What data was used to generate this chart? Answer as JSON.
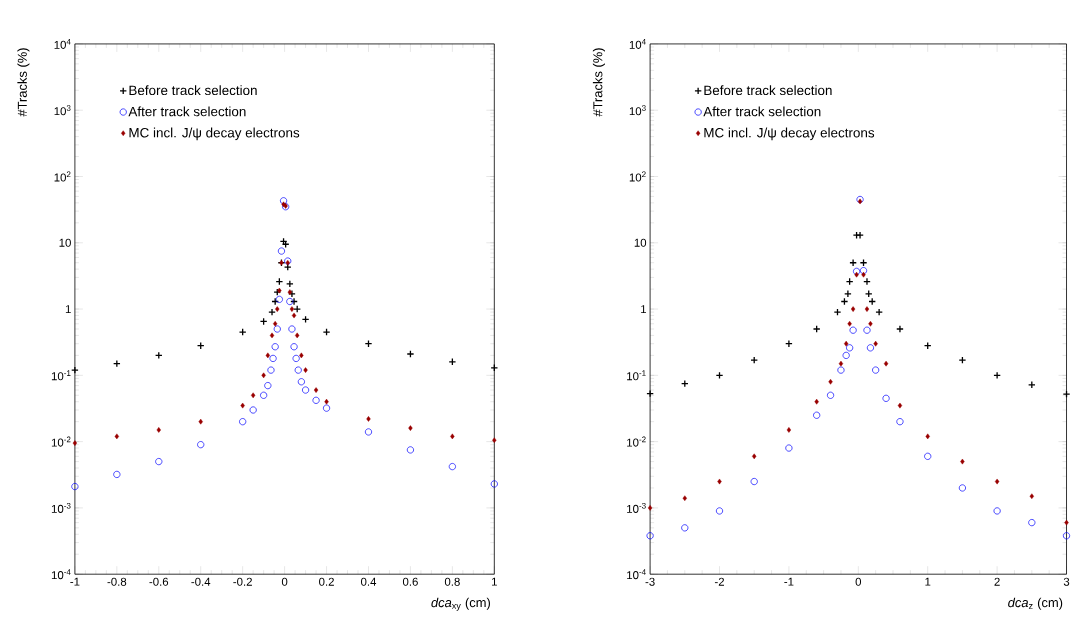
{
  "chart_data": [
    {
      "type": "scatter",
      "xlabel": "*dca*$_{xy}$ (cm)",
      "ylabel": "#Tracks (%)",
      "log": "y",
      "legend": "top left",
      "xlim": [
        -1,
        1
      ],
      "ylim": [
        0.0001,
        10000
      ],
      "xticks": [
        -1,
        -0.8,
        -0.6,
        -0.4,
        -0.2,
        0,
        0.2,
        0.4,
        0.6,
        0.8,
        1
      ],
      "yticks": [
        {
          "value": 0.0001,
          "label": "10$^{-4}$"
        },
        {
          "value": 0.001,
          "label": "10$^{-3}$"
        },
        {
          "value": 0.01,
          "label": "10$^{-2}$"
        },
        {
          "value": 0.1,
          "label": "10$^{-1}$"
        },
        {
          "value": 1,
          "label": "1"
        },
        {
          "value": 10,
          "label": "10"
        },
        {
          "value": 100,
          "label": "10$^{2}$"
        },
        {
          "value": 1000,
          "label": "10$^{3}$"
        },
        {
          "value": 10000,
          "label": "10$^{4}$"
        }
      ],
      "series": [
        {
          "name": "Before track selection",
          "color": "#000000",
          "marker": "cross",
          "x": [
            -1,
            -0.8,
            -0.6,
            -0.4,
            -0.2,
            -0.1,
            -0.06,
            -0.045,
            -0.035,
            -0.025,
            -0.015,
            -0.005,
            0.005,
            0.015,
            0.025,
            0.035,
            0.045,
            0.06,
            0.1,
            0.2,
            0.4,
            0.6,
            0.8,
            1
          ],
          "values": [
            0.12,
            0.15,
            0.2,
            0.28,
            0.45,
            0.65,
            0.9,
            1.3,
            1.8,
            2.6,
            5,
            10.5,
            9.5,
            4.3,
            2.4,
            1.7,
            1.3,
            1.0,
            0.7,
            0.45,
            0.3,
            0.21,
            0.16,
            0.13
          ]
        },
        {
          "name": "After track selection",
          "color": "#0000ff",
          "marker": "circle",
          "x": [
            -1,
            -0.8,
            -0.6,
            -0.4,
            -0.2,
            -0.15,
            -0.1,
            -0.08,
            -0.065,
            -0.055,
            -0.045,
            -0.035,
            -0.025,
            -0.015,
            -0.005,
            0.005,
            0.015,
            0.025,
            0.035,
            0.045,
            0.055,
            0.065,
            0.08,
            0.1,
            0.15,
            0.2,
            0.4,
            0.6,
            0.8,
            1
          ],
          "values": [
            0.0021,
            0.0032,
            0.005,
            0.009,
            0.02,
            0.03,
            0.05,
            0.07,
            0.12,
            0.18,
            0.27,
            0.5,
            1.4,
            7.5,
            43,
            35,
            5.3,
            1.3,
            0.5,
            0.27,
            0.18,
            0.12,
            0.08,
            0.06,
            0.042,
            0.032,
            0.014,
            0.0075,
            0.0042,
            0.0023
          ]
        },
        {
          "name": "MC incl. J/ψ decay electrons",
          "color": "#990000",
          "marker": "diamond",
          "x": [
            -1,
            -0.8,
            -0.6,
            -0.4,
            -0.2,
            -0.15,
            -0.1,
            -0.08,
            -0.06,
            -0.045,
            -0.035,
            -0.025,
            -0.015,
            -0.005,
            0.005,
            0.015,
            0.025,
            0.035,
            0.045,
            0.06,
            0.08,
            0.1,
            0.15,
            0.2,
            0.4,
            0.6,
            0.8,
            1
          ],
          "values": [
            0.0095,
            0.012,
            0.015,
            0.02,
            0.035,
            0.05,
            0.1,
            0.2,
            0.4,
            0.6,
            1.0,
            1.9,
            5,
            38,
            36,
            5,
            1.8,
            1.0,
            0.8,
            0.4,
            0.2,
            0.12,
            0.06,
            0.04,
            0.022,
            0.016,
            0.012,
            0.0105
          ]
        }
      ]
    },
    {
      "type": "scatter",
      "xlabel": "*dca*$_{z}$ (cm)",
      "ylabel": "#Tracks (%)",
      "log": "y",
      "legend": "top left",
      "xlim": [
        -3,
        3
      ],
      "ylim": [
        0.0001,
        10000
      ],
      "xticks": [
        -3,
        -2,
        -1,
        0,
        1,
        2,
        3
      ],
      "yticks": [
        {
          "value": 0.0001,
          "label": "10$^{-4}$"
        },
        {
          "value": 0.001,
          "label": "10$^{-3}$"
        },
        {
          "value": 0.01,
          "label": "10$^{-2}$"
        },
        {
          "value": 0.1,
          "label": "10$^{-1}$"
        },
        {
          "value": 1,
          "label": "1"
        },
        {
          "value": 10,
          "label": "10"
        },
        {
          "value": 100,
          "label": "10$^{2}$"
        },
        {
          "value": 1000,
          "label": "10$^{3}$"
        },
        {
          "value": 10000,
          "label": "10$^{4}$"
        }
      ],
      "series": [
        {
          "name": "Before track selection",
          "color": "#000000",
          "marker": "cross",
          "x": [
            -3,
            -2.5,
            -2,
            -1.5,
            -1,
            -0.6,
            -0.3,
            -0.2,
            -0.15,
            -0.125,
            -0.075,
            -0.025,
            0.025,
            0.075,
            0.125,
            0.15,
            0.2,
            0.3,
            0.6,
            1,
            1.5,
            2,
            2.5,
            3
          ],
          "values": [
            0.053,
            0.075,
            0.1,
            0.17,
            0.3,
            0.5,
            0.9,
            1.3,
            1.7,
            2.6,
            5,
            13,
            13,
            5,
            2.6,
            1.7,
            1.3,
            0.9,
            0.5,
            0.28,
            0.17,
            0.1,
            0.072,
            0.052
          ]
        },
        {
          "name": "After track selection",
          "color": "#0000ff",
          "marker": "circle",
          "x": [
            -3,
            -2.5,
            -2,
            -1.5,
            -1,
            -0.6,
            -0.4,
            -0.25,
            -0.175,
            -0.125,
            -0.075,
            -0.025,
            0.025,
            0.075,
            0.125,
            0.175,
            0.25,
            0.4,
            0.6,
            1,
            1.5,
            2,
            2.5,
            3
          ],
          "values": [
            0.00038,
            0.0005,
            0.0009,
            0.0025,
            0.008,
            0.025,
            0.05,
            0.12,
            0.2,
            0.26,
            0.48,
            3.7,
            45,
            3.8,
            0.48,
            0.26,
            0.12,
            0.045,
            0.02,
            0.006,
            0.002,
            0.0009,
            0.0006,
            0.00038
          ]
        },
        {
          "name": "MC incl. J/ψ decay electrons",
          "color": "#990000",
          "marker": "diamond",
          "x": [
            -3,
            -2.5,
            -2,
            -1.5,
            -1,
            -0.6,
            -0.4,
            -0.25,
            -0.175,
            -0.125,
            -0.075,
            -0.025,
            0.025,
            0.075,
            0.125,
            0.175,
            0.25,
            0.4,
            0.6,
            1,
            1.5,
            2,
            2.5,
            3
          ],
          "values": [
            0.001,
            0.0014,
            0.0025,
            0.006,
            0.015,
            0.04,
            0.08,
            0.15,
            0.3,
            0.6,
            1.0,
            3.3,
            42,
            3.3,
            1.0,
            0.6,
            0.3,
            0.15,
            0.035,
            0.012,
            0.005,
            0.0025,
            0.0015,
            0.0006
          ]
        }
      ]
    }
  ]
}
